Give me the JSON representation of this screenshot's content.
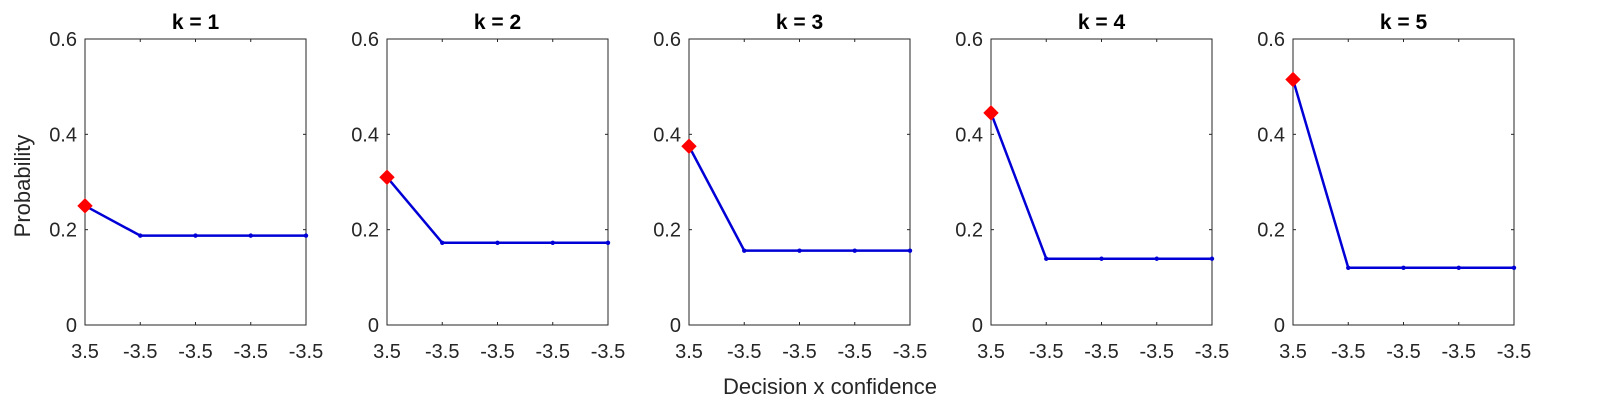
{
  "figure": {
    "xlabel": "Decision x confidence",
    "ylabel": "Probability"
  },
  "colors": {
    "line": "#0000d6",
    "highlight_marker": "#ff0000",
    "axes": "#262626"
  },
  "chart_data": [
    {
      "type": "line",
      "title": "k = 1",
      "categories": [
        "3.5",
        "-3.5",
        "-3.5",
        "-3.5",
        "-3.5"
      ],
      "values": [
        0.25,
        0.1875,
        0.1875,
        0.1875,
        0.1875
      ],
      "highlight_index": 0,
      "ylim": [
        0,
        0.6
      ],
      "yticks": [
        "0",
        "0.2",
        "0.4",
        "0.6"
      ],
      "grid": false
    },
    {
      "type": "line",
      "title": "k = 2",
      "categories": [
        "3.5",
        "-3.5",
        "-3.5",
        "-3.5",
        "-3.5"
      ],
      "values": [
        0.31,
        0.1725,
        0.1725,
        0.1725,
        0.1725
      ],
      "highlight_index": 0,
      "ylim": [
        0,
        0.6
      ],
      "yticks": [
        "0",
        "0.2",
        "0.4",
        "0.6"
      ],
      "grid": false
    },
    {
      "type": "line",
      "title": "k = 3",
      "categories": [
        "3.5",
        "-3.5",
        "-3.5",
        "-3.5",
        "-3.5"
      ],
      "values": [
        0.375,
        0.156,
        0.156,
        0.156,
        0.156
      ],
      "highlight_index": 0,
      "ylim": [
        0,
        0.6
      ],
      "yticks": [
        "0",
        "0.2",
        "0.4",
        "0.6"
      ],
      "grid": false
    },
    {
      "type": "line",
      "title": "k = 4",
      "categories": [
        "3.5",
        "-3.5",
        "-3.5",
        "-3.5",
        "-3.5"
      ],
      "values": [
        0.445,
        0.139,
        0.139,
        0.139,
        0.139
      ],
      "highlight_index": 0,
      "ylim": [
        0,
        0.6
      ],
      "yticks": [
        "0",
        "0.2",
        "0.4",
        "0.6"
      ],
      "grid": false
    },
    {
      "type": "line",
      "title": "k = 5",
      "categories": [
        "3.5",
        "-3.5",
        "-3.5",
        "-3.5",
        "-3.5"
      ],
      "values": [
        0.515,
        0.12,
        0.12,
        0.12,
        0.12
      ],
      "highlight_index": 0,
      "ylim": [
        0,
        0.6
      ],
      "yticks": [
        "0",
        "0.2",
        "0.4",
        "0.6"
      ],
      "grid": false
    }
  ]
}
